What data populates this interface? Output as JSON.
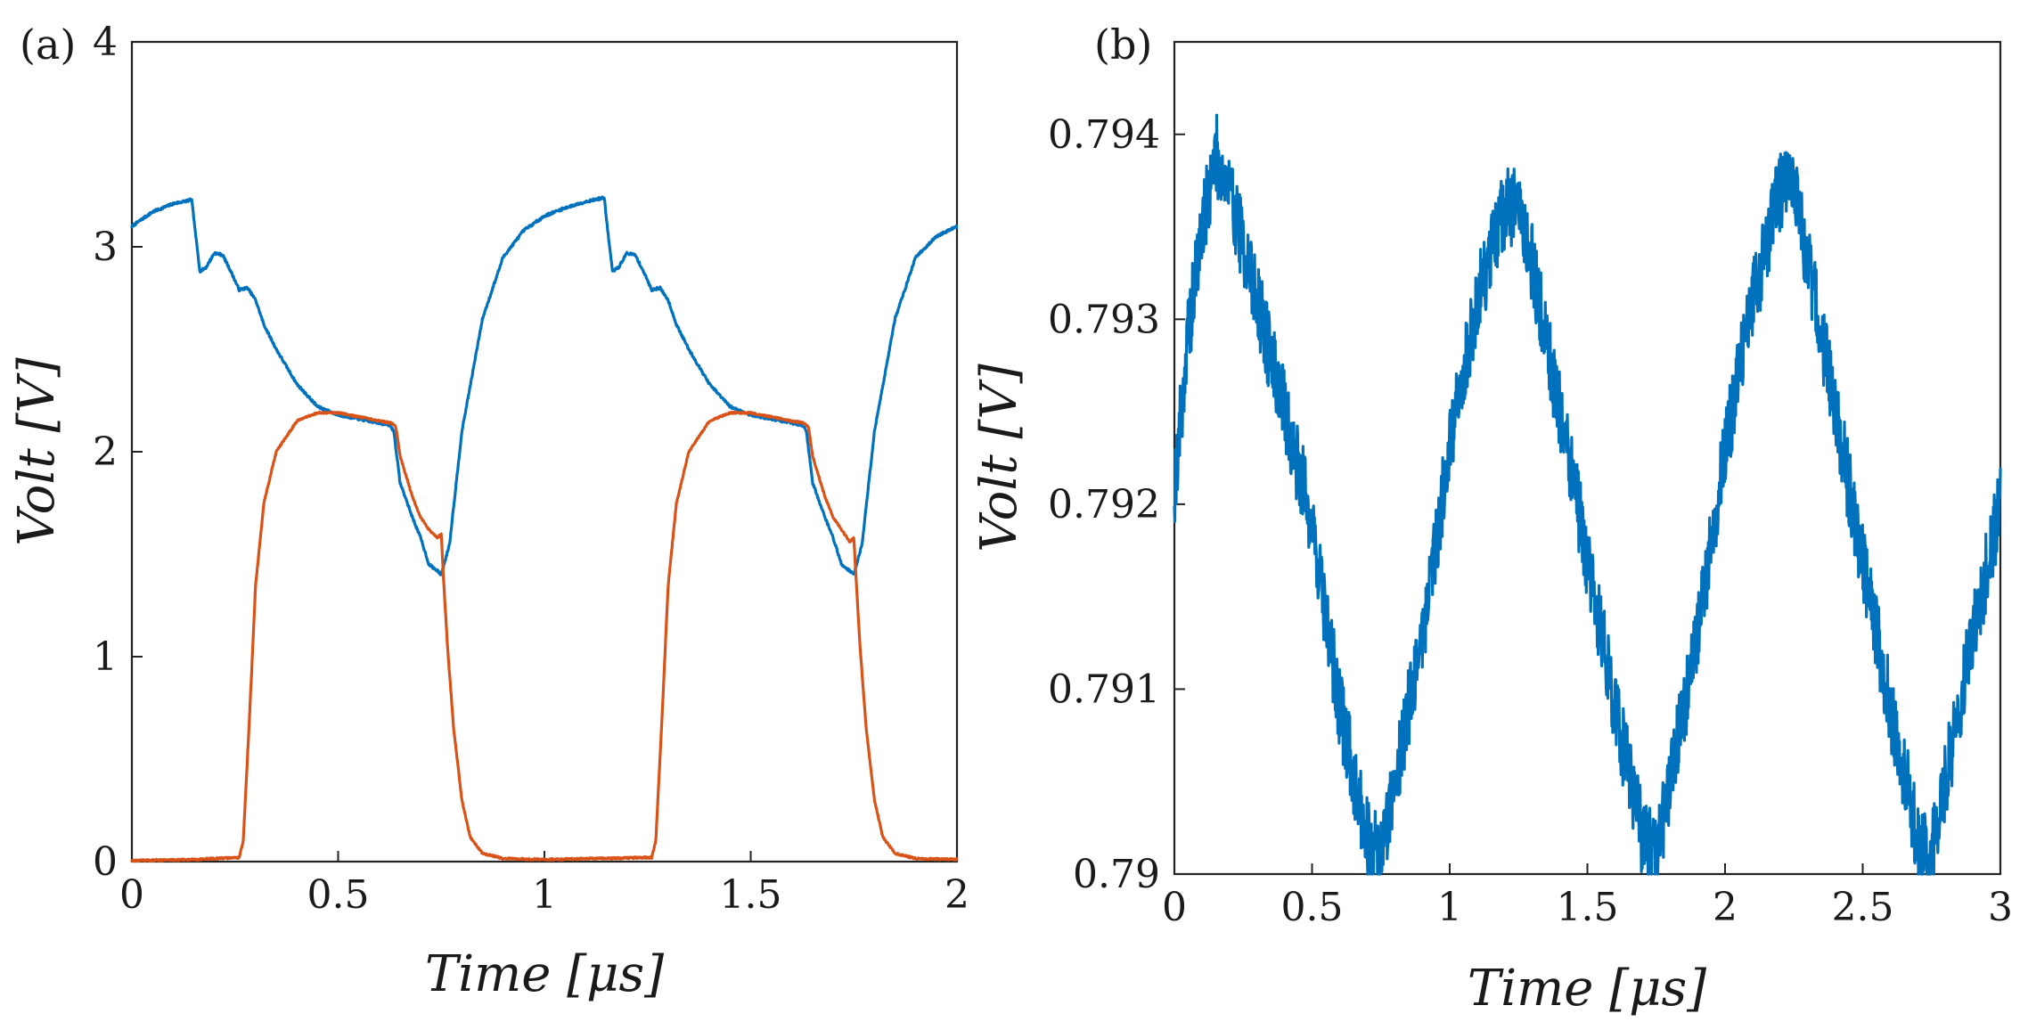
{
  "chart_data": [
    {
      "panel_label": "(a)",
      "type": "line",
      "xlabel": "Time [μs]",
      "ylabel": "Volt [V]",
      "xlim": [
        0,
        2
      ],
      "ylim": [
        0,
        4
      ],
      "x_ticks": [
        0,
        0.5,
        1,
        1.5,
        2
      ],
      "x_tick_labels": [
        "0",
        "0.5",
        "1",
        "1.5",
        "2"
      ],
      "y_ticks": [
        0,
        1,
        2,
        3,
        4
      ],
      "y_tick_labels": [
        "0",
        "1",
        "2",
        "3",
        "4"
      ],
      "grid": false,
      "legend": "none",
      "series": [
        {
          "name": "blue",
          "color": "#0072BD",
          "noise": 0.006,
          "x": [
            0,
            0.05,
            0.1,
            0.145,
            0.155,
            0.165,
            0.18,
            0.2,
            0.22,
            0.24,
            0.26,
            0.28,
            0.3,
            0.32,
            0.35,
            0.4,
            0.45,
            0.5,
            0.55,
            0.6,
            0.625,
            0.635,
            0.65,
            0.68,
            0.7,
            0.72,
            0.74,
            0.75,
            0.77,
            0.8,
            0.85,
            0.9,
            0.95,
            1.0,
            1.05,
            1.1,
            1.145,
            1.155,
            1.165,
            1.18,
            1.2,
            1.22,
            1.24,
            1.26,
            1.28,
            1.3,
            1.32,
            1.35,
            1.4,
            1.45,
            1.5,
            1.55,
            1.6,
            1.625,
            1.635,
            1.65,
            1.68,
            1.7,
            1.72,
            1.74,
            1.75,
            1.77,
            1.8,
            1.85,
            1.9,
            1.95,
            2.0
          ],
          "y": [
            3.1,
            3.17,
            3.21,
            3.23,
            3.05,
            2.88,
            2.9,
            2.97,
            2.96,
            2.88,
            2.79,
            2.8,
            2.74,
            2.62,
            2.5,
            2.33,
            2.22,
            2.18,
            2.16,
            2.14,
            2.13,
            2.1,
            1.85,
            1.68,
            1.58,
            1.45,
            1.42,
            1.4,
            1.55,
            2.1,
            2.65,
            2.95,
            3.08,
            3.15,
            3.19,
            3.22,
            3.24,
            3.05,
            2.88,
            2.9,
            2.97,
            2.96,
            2.88,
            2.79,
            2.8,
            2.74,
            2.62,
            2.5,
            2.33,
            2.22,
            2.18,
            2.16,
            2.14,
            2.13,
            2.1,
            1.85,
            1.68,
            1.58,
            1.45,
            1.42,
            1.4,
            1.55,
            2.1,
            2.65,
            2.95,
            3.05,
            3.1
          ]
        },
        {
          "name": "orange",
          "color": "#D95319",
          "noise": 0.004,
          "x": [
            0,
            0.15,
            0.26,
            0.27,
            0.285,
            0.3,
            0.32,
            0.35,
            0.4,
            0.45,
            0.5,
            0.55,
            0.6,
            0.63,
            0.64,
            0.65,
            0.68,
            0.7,
            0.72,
            0.74,
            0.75,
            0.755,
            0.765,
            0.78,
            0.8,
            0.82,
            0.85,
            0.9,
            1.0,
            1.26,
            1.27,
            1.285,
            1.3,
            1.32,
            1.35,
            1.4,
            1.45,
            1.5,
            1.55,
            1.6,
            1.63,
            1.64,
            1.65,
            1.68,
            1.7,
            1.72,
            1.74,
            1.75,
            1.755,
            1.765,
            1.78,
            1.8,
            1.82,
            1.85,
            1.9,
            2.0
          ],
          "y": [
            0.005,
            0.01,
            0.02,
            0.1,
            0.7,
            1.35,
            1.75,
            2.0,
            2.15,
            2.19,
            2.19,
            2.17,
            2.15,
            2.14,
            2.12,
            1.98,
            1.78,
            1.68,
            1.62,
            1.58,
            1.6,
            1.4,
            1.05,
            0.65,
            0.3,
            0.12,
            0.04,
            0.015,
            0.01,
            0.02,
            0.1,
            0.7,
            1.35,
            1.75,
            2.0,
            2.15,
            2.19,
            2.19,
            2.17,
            2.15,
            2.14,
            2.12,
            1.98,
            1.78,
            1.68,
            1.62,
            1.56,
            1.58,
            1.4,
            1.05,
            0.65,
            0.3,
            0.12,
            0.04,
            0.015,
            0.01
          ]
        }
      ]
    },
    {
      "panel_label": "(b)",
      "type": "line",
      "xlabel": "Time [μs]",
      "ylabel": "Volt [V]",
      "xlim": [
        0,
        3
      ],
      "ylim": [
        0.79,
        0.7945
      ],
      "x_ticks": [
        0,
        0.5,
        1,
        1.5,
        2,
        2.5,
        3
      ],
      "x_tick_labels": [
        "0",
        "0.5",
        "1",
        "1.5",
        "2",
        "2.5",
        "3"
      ],
      "y_ticks": [
        0.79,
        0.791,
        0.792,
        0.793,
        0.794
      ],
      "y_tick_labels": [
        "0.79",
        "0.791",
        "0.792",
        "0.793",
        "0.794"
      ],
      "grid": false,
      "legend": "none",
      "series": [
        {
          "name": "blue",
          "color": "#0072BD",
          "noise": 0.00022,
          "x": [
            0,
            0.05,
            0.1,
            0.15,
            0.2,
            0.3,
            0.4,
            0.5,
            0.6,
            0.7,
            0.75,
            0.8,
            0.9,
            1.0,
            1.1,
            1.2,
            1.25,
            1.3,
            1.4,
            1.5,
            1.6,
            1.7,
            1.75,
            1.8,
            1.9,
            2.0,
            2.1,
            2.2,
            2.25,
            2.3,
            2.4,
            2.5,
            2.6,
            2.7,
            2.75,
            2.8,
            2.9,
            3.0
          ],
          "y": [
            0.7921,
            0.7929,
            0.7935,
            0.7939,
            0.7937,
            0.7931,
            0.7925,
            0.7919,
            0.7909,
            0.7902,
            0.7901,
            0.7905,
            0.7913,
            0.7923,
            0.7931,
            0.7936,
            0.7936,
            0.7933,
            0.7925,
            0.7917,
            0.7909,
            0.7902,
            0.7901,
            0.7905,
            0.7913,
            0.7923,
            0.7931,
            0.7937,
            0.7937,
            0.7933,
            0.7925,
            0.7917,
            0.7909,
            0.7902,
            0.7901,
            0.7905,
            0.7913,
            0.792
          ]
        }
      ]
    }
  ]
}
